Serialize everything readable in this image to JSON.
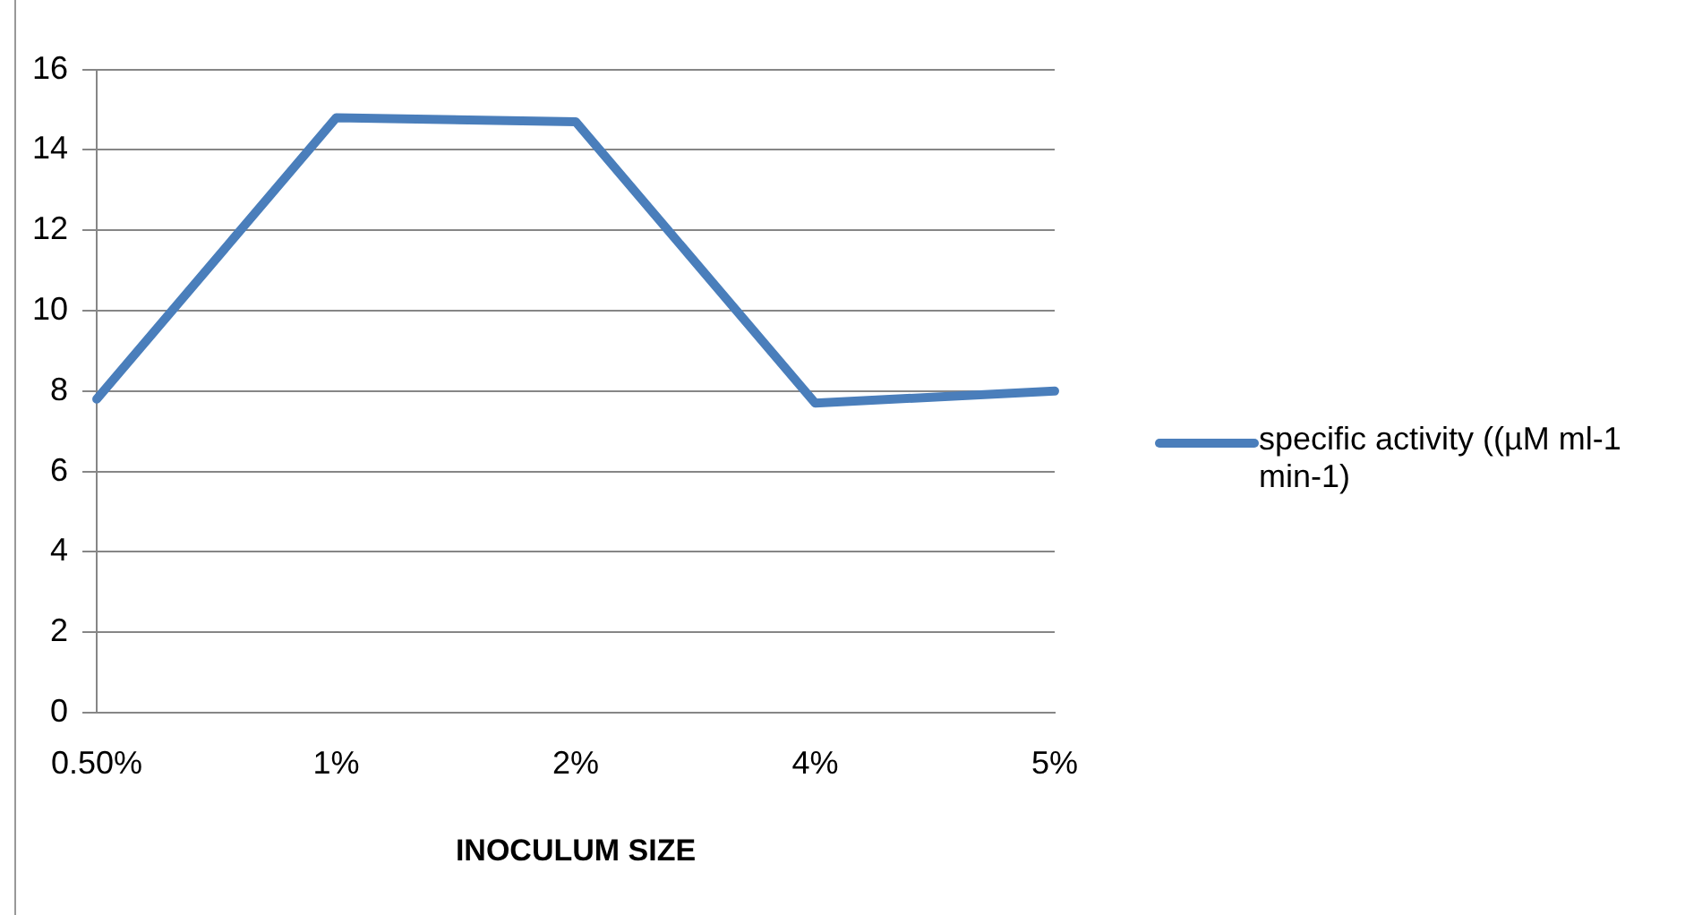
{
  "chart_data": {
    "type": "line",
    "xlabel": "INOCULUM SIZE",
    "categories": [
      "0.50%",
      "1%",
      "2%",
      "4%",
      "5%"
    ],
    "series": [
      {
        "name": "specific activity ((µM ml-1 min-1)",
        "color": "#4a7ebb",
        "values": [
          7.8,
          14.8,
          14.7,
          7.7,
          8.0
        ]
      }
    ],
    "ylim": [
      0,
      16
    ],
    "yticks": [
      0,
      2,
      4,
      6,
      8,
      10,
      12,
      14,
      16
    ],
    "grid": "y",
    "legend": "right",
    "marker": "none"
  }
}
